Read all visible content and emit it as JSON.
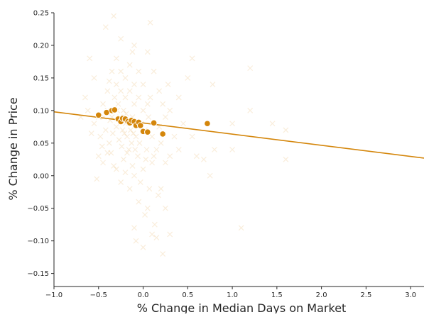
{
  "chart_data": {
    "type": "scatter",
    "title": "",
    "xlabel": "% Change in Median Days on Market",
    "ylabel": "% Change in Price",
    "xlim": [
      -1.0,
      3.15
    ],
    "ylim": [
      -0.17,
      0.25
    ],
    "x_ticks": [
      -1.0,
      -0.5,
      0.0,
      0.5,
      1.0,
      1.5,
      2.0,
      2.5,
      3.0
    ],
    "x_tick_labels": [
      "−1.0",
      "−0.5",
      "0.0",
      "0.5",
      "1.0",
      "1.5",
      "2.0",
      "2.5",
      "3.0"
    ],
    "y_ticks": [
      -0.15,
      -0.1,
      -0.05,
      0.0,
      0.05,
      0.1,
      0.15,
      0.2,
      0.25
    ],
    "y_tick_labels": [
      "−0.15",
      "−0.10",
      "−0.05",
      "0.00",
      "0.05",
      "0.10",
      "0.15",
      "0.20",
      "0.25"
    ],
    "grid": false,
    "colors": {
      "accent": "#d4860b",
      "point_edge": "#ffffff",
      "axis": "#262626"
    },
    "series": [
      {
        "marker": "x",
        "opacity": 0.15,
        "values": [
          {
            "x": -0.42,
            "y": 0.228
          },
          {
            "x": -0.33,
            "y": 0.245
          },
          {
            "x": -0.25,
            "y": 0.21
          },
          {
            "x": 0.08,
            "y": 0.235
          },
          {
            "x": 0.05,
            "y": 0.19
          },
          {
            "x": -0.1,
            "y": 0.2
          },
          {
            "x": -0.6,
            "y": 0.18
          },
          {
            "x": -0.55,
            "y": 0.15
          },
          {
            "x": -0.65,
            "y": 0.12
          },
          {
            "x": 0.55,
            "y": 0.18
          },
          {
            "x": 0.5,
            "y": 0.15
          },
          {
            "x": 0.78,
            "y": 0.14
          },
          {
            "x": 1.2,
            "y": 0.165
          },
          {
            "x": 1.0,
            "y": 0.08
          },
          {
            "x": 1.2,
            "y": 0.1
          },
          {
            "x": 1.45,
            "y": 0.08
          },
          {
            "x": 1.6,
            "y": 0.07
          },
          {
            "x": 1.6,
            "y": 0.025
          },
          {
            "x": 1.0,
            "y": 0.04
          },
          {
            "x": 0.8,
            "y": 0.04
          },
          {
            "x": 0.68,
            "y": 0.025
          },
          {
            "x": 0.75,
            "y": 0.0
          },
          {
            "x": 1.1,
            "y": -0.08
          },
          {
            "x": 0.6,
            "y": 0.03
          },
          {
            "x": 0.55,
            "y": 0.06
          },
          {
            "x": 0.4,
            "y": 0.12
          },
          {
            "x": 0.3,
            "y": 0.1
          },
          {
            "x": 0.25,
            "y": 0.02
          },
          {
            "x": 0.2,
            "y": -0.02
          },
          {
            "x": 0.25,
            "y": -0.05
          },
          {
            "x": 0.05,
            "y": -0.05
          },
          {
            "x": 0.1,
            "y": -0.09
          },
          {
            "x": 0.15,
            "y": -0.095
          },
          {
            "x": 0.22,
            "y": -0.12
          },
          {
            "x": 0.3,
            "y": -0.09
          },
          {
            "x": 0.0,
            "y": -0.11
          },
          {
            "x": -0.1,
            "y": -0.08
          },
          {
            "x": -0.05,
            "y": -0.04
          },
          {
            "x": -0.15,
            "y": -0.02
          },
          {
            "x": 0.02,
            "y": -0.06
          },
          {
            "x": -0.08,
            "y": -0.1
          },
          {
            "x": 0.13,
            "y": -0.075
          },
          {
            "x": -0.5,
            "y": 0.03
          },
          {
            "x": -0.45,
            "y": 0.02
          },
          {
            "x": -0.52,
            "y": -0.005
          },
          {
            "x": -0.4,
            "y": 0.035
          },
          {
            "x": -0.3,
            "y": 0.01
          },
          {
            "x": -0.25,
            "y": -0.01
          },
          {
            "x": -0.2,
            "y": 0.005
          },
          {
            "x": -0.1,
            "y": 0.0
          },
          {
            "x": 0.0,
            "y": 0.01
          },
          {
            "x": 0.1,
            "y": 0.02
          },
          {
            "x": 0.15,
            "y": 0.04
          },
          {
            "x": 0.2,
            "y": 0.05
          },
          {
            "x": 0.1,
            "y": 0.06
          },
          {
            "x": 0.05,
            "y": 0.11
          },
          {
            "x": 0.0,
            "y": 0.14
          },
          {
            "x": -0.05,
            "y": 0.16
          },
          {
            "x": -0.15,
            "y": 0.17
          },
          {
            "x": -0.2,
            "y": 0.15
          },
          {
            "x": -0.3,
            "y": 0.14
          },
          {
            "x": -0.35,
            "y": 0.16
          },
          {
            "x": -0.4,
            "y": 0.13
          },
          {
            "x": -0.45,
            "y": 0.11
          },
          {
            "x": -0.5,
            "y": 0.09
          },
          {
            "x": -0.55,
            "y": 0.08
          },
          {
            "x": -0.48,
            "y": 0.06
          },
          {
            "x": -0.42,
            "y": 0.07
          },
          {
            "x": -0.38,
            "y": 0.05
          },
          {
            "x": -0.35,
            "y": 0.09
          },
          {
            "x": -0.32,
            "y": 0.12
          },
          {
            "x": -0.28,
            "y": 0.11
          },
          {
            "x": -0.25,
            "y": 0.13
          },
          {
            "x": -0.22,
            "y": 0.1
          },
          {
            "x": -0.2,
            "y": 0.08
          },
          {
            "x": -0.18,
            "y": 0.06
          },
          {
            "x": -0.16,
            "y": 0.04
          },
          {
            "x": -0.14,
            "y": 0.07
          },
          {
            "x": -0.12,
            "y": 0.09
          },
          {
            "x": -0.1,
            "y": 0.11
          },
          {
            "x": -0.08,
            "y": 0.06
          },
          {
            "x": -0.06,
            "y": 0.03
          },
          {
            "x": -0.04,
            "y": 0.05
          },
          {
            "x": -0.02,
            "y": 0.08
          },
          {
            "x": 0.0,
            "y": 0.1
          },
          {
            "x": 0.02,
            "y": 0.07
          },
          {
            "x": 0.04,
            "y": 0.04
          },
          {
            "x": 0.06,
            "y": 0.09
          },
          {
            "x": 0.08,
            "y": 0.12
          },
          {
            "x": -0.3,
            "y": 0.075
          },
          {
            "x": -0.27,
            "y": 0.055
          },
          {
            "x": -0.24,
            "y": 0.045
          },
          {
            "x": -0.21,
            "y": 0.065
          },
          {
            "x": -0.19,
            "y": 0.095
          },
          {
            "x": -0.17,
            "y": 0.085
          },
          {
            "x": -0.23,
            "y": 0.07
          },
          {
            "x": -0.26,
            "y": 0.09
          },
          {
            "x": -0.29,
            "y": 0.1
          },
          {
            "x": -0.34,
            "y": 0.065
          },
          {
            "x": -0.37,
            "y": 0.085
          },
          {
            "x": -0.4,
            "y": 0.1
          },
          {
            "x": -0.44,
            "y": 0.09
          },
          {
            "x": -0.13,
            "y": 0.05
          },
          {
            "x": -0.11,
            "y": 0.065
          },
          {
            "x": -0.09,
            "y": 0.04
          },
          {
            "x": -0.07,
            "y": 0.08
          },
          {
            "x": 0.03,
            "y": 0.025
          },
          {
            "x": 0.12,
            "y": 0.03
          },
          {
            "x": 0.18,
            "y": 0.075
          },
          {
            "x": 0.25,
            "y": 0.09
          },
          {
            "x": 0.35,
            "y": 0.06
          },
          {
            "x": 0.4,
            "y": 0.04
          },
          {
            "x": 0.45,
            "y": 0.08
          },
          {
            "x": 0.3,
            "y": 0.03
          },
          {
            "x": -0.62,
            "y": 0.1
          },
          {
            "x": -0.58,
            "y": 0.065
          },
          {
            "x": -0.7,
            "y": 0.09
          },
          {
            "x": -0.46,
            "y": 0.045
          },
          {
            "x": -0.36,
            "y": 0.035
          },
          {
            "x": -0.33,
            "y": 0.015
          },
          {
            "x": -0.22,
            "y": 0.025
          },
          {
            "x": -0.18,
            "y": 0.035
          },
          {
            "x": -0.12,
            "y": 0.015
          },
          {
            "x": -0.03,
            "y": -0.01
          },
          {
            "x": 0.07,
            "y": -0.02
          },
          {
            "x": 0.17,
            "y": -0.03
          },
          {
            "x": -0.2,
            "y": 0.12
          },
          {
            "x": -0.15,
            "y": 0.13
          },
          {
            "x": -0.1,
            "y": 0.14
          },
          {
            "x": -0.05,
            "y": 0.12
          },
          {
            "x": -0.25,
            "y": 0.16
          },
          {
            "x": -0.38,
            "y": 0.145
          },
          {
            "x": -0.3,
            "y": 0.18
          },
          {
            "x": -0.12,
            "y": 0.19
          },
          {
            "x": 0.12,
            "y": 0.16
          },
          {
            "x": 0.18,
            "y": 0.13
          },
          {
            "x": 0.22,
            "y": 0.11
          },
          {
            "x": 0.28,
            "y": 0.14
          }
        ]
      },
      {
        "marker": "o",
        "values": [
          {
            "x": -0.5,
            "y": 0.093
          },
          {
            "x": -0.41,
            "y": 0.097
          },
          {
            "x": -0.35,
            "y": 0.1
          },
          {
            "x": -0.32,
            "y": 0.101
          },
          {
            "x": -0.28,
            "y": 0.087
          },
          {
            "x": -0.25,
            "y": 0.083
          },
          {
            "x": -0.23,
            "y": 0.088
          },
          {
            "x": -0.2,
            "y": 0.087
          },
          {
            "x": -0.17,
            "y": 0.083
          },
          {
            "x": -0.15,
            "y": 0.081
          },
          {
            "x": -0.13,
            "y": 0.085
          },
          {
            "x": -0.1,
            "y": 0.083
          },
          {
            "x": -0.08,
            "y": 0.077
          },
          {
            "x": -0.05,
            "y": 0.082
          },
          {
            "x": -0.03,
            "y": 0.077
          },
          {
            "x": 0.0,
            "y": 0.068
          },
          {
            "x": 0.05,
            "y": 0.067
          },
          {
            "x": 0.12,
            "y": 0.081
          },
          {
            "x": 0.22,
            "y": 0.064
          },
          {
            "x": 0.72,
            "y": 0.08
          }
        ]
      }
    ],
    "trend_line": {
      "x": [
        -1.0,
        3.15
      ],
      "y": [
        0.098,
        0.027
      ]
    }
  }
}
